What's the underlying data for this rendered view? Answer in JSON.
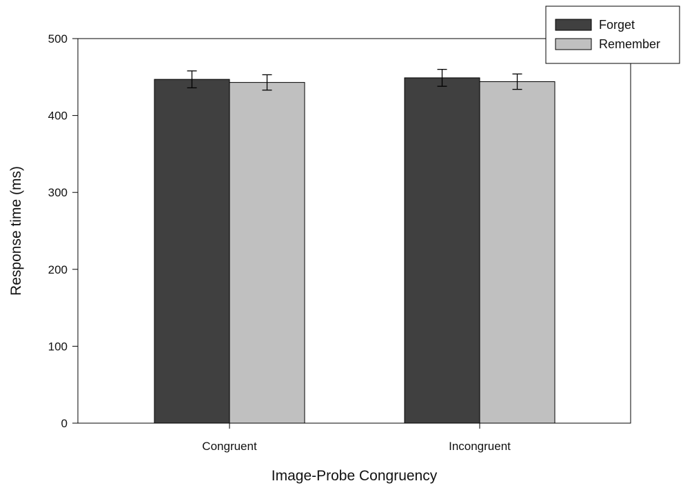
{
  "chart_data": {
    "type": "bar",
    "title": "",
    "xlabel": "Image-Probe Congruency",
    "ylabel": "Response time (ms)",
    "ylim": [
      0,
      500
    ],
    "yticks": [
      0,
      100,
      200,
      300,
      400,
      500
    ],
    "categories": [
      "Congruent",
      "Incongruent"
    ],
    "series": [
      {
        "name": "Forget",
        "values": [
          447,
          449
        ],
        "errors": [
          11,
          11
        ],
        "color": "#404040"
      },
      {
        "name": "Remember",
        "values": [
          443,
          444
        ],
        "errors": [
          10,
          10
        ],
        "color": "#c0c0c0"
      }
    ],
    "grid": false,
    "legend": "top-right",
    "error_bars": true
  }
}
